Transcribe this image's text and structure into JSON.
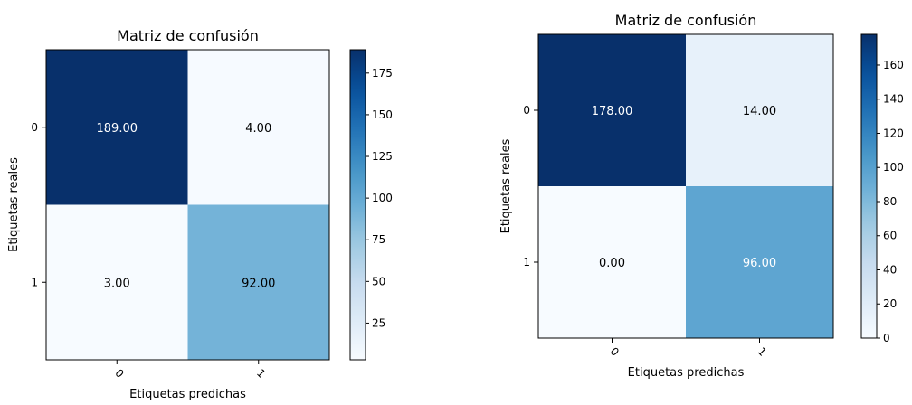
{
  "chart_data": [
    {
      "type": "heatmap",
      "title": "Matriz de confusión",
      "xlabel": "Etiquetas predichas",
      "ylabel": "Etiquetas reales",
      "x_categories": [
        "0",
        "1"
      ],
      "y_categories": [
        "0",
        "1"
      ],
      "values": [
        [
          189,
          4
        ],
        [
          3,
          92
        ]
      ],
      "cell_labels": [
        [
          "189.00",
          "4.00"
        ],
        [
          "3.00",
          "92.00"
        ]
      ],
      "colormap": "Blues",
      "color_range": [
        3,
        189
      ],
      "colorbar_ticks": [
        25,
        50,
        75,
        100,
        125,
        150,
        175
      ],
      "grid": false
    },
    {
      "type": "heatmap",
      "title": "Matriz de confusión",
      "xlabel": "Etiquetas predichas",
      "ylabel": "Etiquetas reales",
      "x_categories": [
        "0",
        "1"
      ],
      "y_categories": [
        "0",
        "1"
      ],
      "values": [
        [
          178,
          14
        ],
        [
          0,
          96
        ]
      ],
      "cell_labels": [
        [
          "178.00",
          "14.00"
        ],
        [
          "0.00",
          "96.00"
        ]
      ],
      "colormap": "Blues",
      "color_range": [
        0,
        178
      ],
      "colorbar_ticks": [
        0,
        20,
        40,
        60,
        80,
        100,
        120,
        140,
        160
      ],
      "grid": false
    }
  ]
}
